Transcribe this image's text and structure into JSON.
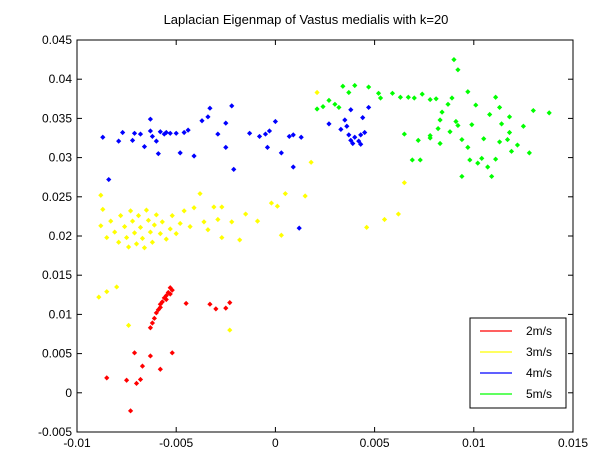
{
  "chart_data": {
    "type": "scatter",
    "title": "Laplacian Eigenmap of Vastus medialis  with k=20",
    "xlabel": "",
    "ylabel": "",
    "xlim": [
      -0.01,
      0.015
    ],
    "ylim": [
      -0.005,
      0.045
    ],
    "xticks": [
      -0.01,
      -0.005,
      0,
      0.005,
      0.01,
      0.015
    ],
    "xtick_labels": [
      "-0.01",
      "-0.005",
      "0",
      "0.005",
      "0.01",
      "0.015"
    ],
    "yticks": [
      -0.005,
      0,
      0.005,
      0.01,
      0.015,
      0.02,
      0.025,
      0.03,
      0.035,
      0.04,
      0.045
    ],
    "ytick_labels": [
      "-0.005",
      "0",
      "0.005",
      "0.01",
      "0.015",
      "0.02",
      "0.025",
      "0.03",
      "0.035",
      "0.04",
      "0.045"
    ],
    "grid": false,
    "legend_position": "bottom-right",
    "series": [
      {
        "name": "2m/s",
        "color": "#ff0000",
        "points": [
          [
            -0.0053,
            0.0134
          ],
          [
            -0.0052,
            0.0131
          ],
          [
            -0.0054,
            0.0128
          ],
          [
            -0.0053,
            0.0126
          ],
          [
            -0.0055,
            0.0124
          ],
          [
            -0.0056,
            0.0121
          ],
          [
            -0.0055,
            0.0119
          ],
          [
            -0.0057,
            0.0116
          ],
          [
            -0.0058,
            0.0113
          ],
          [
            -0.0058,
            0.0109
          ],
          [
            -0.0059,
            0.0106
          ],
          [
            -0.006,
            0.0102
          ],
          [
            -0.0061,
            0.0095
          ],
          [
            -0.0062,
            0.0089
          ],
          [
            -0.0063,
            0.0083
          ],
          [
            -0.0045,
            0.0114
          ],
          [
            -0.0033,
            0.0113
          ],
          [
            -0.003,
            0.0107
          ],
          [
            -0.0023,
            0.0115
          ],
          [
            -0.0025,
            0.0108
          ],
          [
            -0.0071,
            0.0051
          ],
          [
            -0.0063,
            0.0047
          ],
          [
            -0.0052,
            0.0051
          ],
          [
            -0.0058,
            0.003
          ],
          [
            -0.0067,
            0.0034
          ],
          [
            -0.0085,
            0.0019
          ],
          [
            -0.0075,
            0.0016
          ],
          [
            -0.007,
            0.0012
          ],
          [
            -0.0068,
            0.0017
          ],
          [
            -0.0073,
            -0.0023
          ]
        ]
      },
      {
        "name": "3m/s",
        "color": "#ffff00",
        "points": [
          [
            -0.0088,
            0.0213
          ],
          [
            -0.0085,
            0.0198
          ],
          [
            -0.0083,
            0.0219
          ],
          [
            -0.0081,
            0.0205
          ],
          [
            -0.0079,
            0.0192
          ],
          [
            -0.0078,
            0.0226
          ],
          [
            -0.0076,
            0.0212
          ],
          [
            -0.0075,
            0.0198
          ],
          [
            -0.0074,
            0.0186
          ],
          [
            -0.0073,
            0.0232
          ],
          [
            -0.0072,
            0.0219
          ],
          [
            -0.0071,
            0.0204
          ],
          [
            -0.007,
            0.019
          ],
          [
            -0.0069,
            0.0226
          ],
          [
            -0.0068,
            0.0211
          ],
          [
            -0.0067,
            0.0197
          ],
          [
            -0.0066,
            0.0185
          ],
          [
            -0.0065,
            0.0233
          ],
          [
            -0.0064,
            0.022
          ],
          [
            -0.0063,
            0.0205
          ],
          [
            -0.0062,
            0.0192
          ],
          [
            -0.0061,
            0.0214
          ],
          [
            -0.006,
            0.0227
          ],
          [
            -0.0058,
            0.0203
          ],
          [
            -0.0057,
            0.0218
          ],
          [
            -0.0055,
            0.0196
          ],
          [
            -0.0053,
            0.0209
          ],
          [
            -0.0052,
            0.0226
          ],
          [
            -0.005,
            0.0203
          ],
          [
            -0.0048,
            0.0216
          ],
          [
            -0.0046,
            0.0232
          ],
          [
            -0.0043,
            0.0212
          ],
          [
            -0.0041,
            0.0236
          ],
          [
            -0.0038,
            0.0254
          ],
          [
            -0.0036,
            0.0218
          ],
          [
            -0.0034,
            0.0208
          ],
          [
            -0.0031,
            0.0237
          ],
          [
            -0.0029,
            0.0221
          ],
          [
            -0.0027,
            0.0237
          ],
          [
            -0.0022,
            0.0218
          ],
          [
            -0.0027,
            0.0198
          ],
          [
            -0.0018,
            0.0195
          ],
          [
            -0.0009,
            0.0219
          ],
          [
            -0.0015,
            0.0228
          ],
          [
            -0.0002,
            0.0242
          ],
          [
            0.0001,
            0.0238
          ],
          [
            0.0005,
            0.0254
          ],
          [
            0.0003,
            0.0201
          ],
          [
            0.0015,
            0.0251
          ],
          [
            0.0018,
            0.0294
          ],
          [
            0.0021,
            0.0383
          ],
          [
            0.0046,
            0.0211
          ],
          [
            0.0055,
            0.0221
          ],
          [
            0.0062,
            0.0228
          ],
          [
            0.0065,
            0.0268
          ],
          [
            -0.0088,
            0.0252
          ],
          [
            -0.0087,
            0.0234
          ],
          [
            -0.0089,
            0.0122
          ],
          [
            -0.0085,
            0.0129
          ],
          [
            -0.008,
            0.0135
          ],
          [
            -0.0074,
            0.0086
          ],
          [
            -0.0023,
            0.008
          ]
        ]
      },
      {
        "name": "4m/s",
        "color": "#0000ff",
        "points": [
          [
            -0.0087,
            0.0326
          ],
          [
            -0.0084,
            0.0272
          ],
          [
            -0.0079,
            0.0321
          ],
          [
            -0.0077,
            0.0332
          ],
          [
            -0.0072,
            0.0322
          ],
          [
            -0.0071,
            0.0331
          ],
          [
            -0.0068,
            0.033
          ],
          [
            -0.0066,
            0.0314
          ],
          [
            -0.0062,
            0.0327
          ],
          [
            -0.006,
            0.0321
          ],
          [
            -0.0058,
            0.0333
          ],
          [
            -0.0056,
            0.033
          ],
          [
            -0.0055,
            0.0332
          ],
          [
            -0.0053,
            0.0331
          ],
          [
            -0.0059,
            0.0305
          ],
          [
            -0.005,
            0.0331
          ],
          [
            -0.0046,
            0.0332
          ],
          [
            -0.0044,
            0.0335
          ],
          [
            -0.0063,
            0.0349
          ],
          [
            -0.0063,
            0.0334
          ],
          [
            -0.0048,
            0.0306
          ],
          [
            -0.0041,
            0.0302
          ],
          [
            -0.0037,
            0.0347
          ],
          [
            -0.0034,
            0.0352
          ],
          [
            -0.0033,
            0.0363
          ],
          [
            -0.0029,
            0.033
          ],
          [
            -0.0025,
            0.0344
          ],
          [
            -0.0022,
            0.0366
          ],
          [
            -0.0025,
            0.0313
          ],
          [
            -0.0021,
            0.0285
          ],
          [
            -0.0013,
            0.0331
          ],
          [
            -0.0008,
            0.0327
          ],
          [
            -0.0005,
            0.033
          ],
          [
            -0.0003,
            0.0334
          ],
          [
            0.0,
            0.0346
          ],
          [
            -0.0004,
            0.0313
          ],
          [
            0.0003,
            0.0306
          ],
          [
            0.0007,
            0.0327
          ],
          [
            0.0009,
            0.0329
          ],
          [
            0.0013,
            0.0326
          ],
          [
            0.0009,
            0.0288
          ],
          [
            0.0012,
            0.021
          ],
          [
            0.0027,
            0.0343
          ],
          [
            0.0033,
            0.0336
          ],
          [
            0.0036,
            0.034
          ],
          [
            0.0037,
            0.0329
          ],
          [
            0.0038,
            0.0322
          ],
          [
            0.004,
            0.0326
          ],
          [
            0.0042,
            0.0321
          ],
          [
            0.0043,
            0.0329
          ],
          [
            0.0045,
            0.0332
          ],
          [
            0.0044,
            0.0351
          ],
          [
            0.0047,
            0.0364
          ],
          [
            0.0038,
            0.0361
          ],
          [
            0.0035,
            0.0348
          ],
          [
            0.0039,
            0.0318
          ],
          [
            0.0043,
            0.0317
          ]
        ]
      },
      {
        "name": "5m/s",
        "color": "#00ff00",
        "points": [
          [
            0.0021,
            0.0362
          ],
          [
            0.0024,
            0.0365
          ],
          [
            0.0027,
            0.0373
          ],
          [
            0.003,
            0.0368
          ],
          [
            0.0032,
            0.0364
          ],
          [
            0.0034,
            0.0391
          ],
          [
            0.0037,
            0.0383
          ],
          [
            0.004,
            0.0392
          ],
          [
            0.0047,
            0.039
          ],
          [
            0.0052,
            0.0382
          ],
          [
            0.0053,
            0.0376
          ],
          [
            0.0059,
            0.0382
          ],
          [
            0.0063,
            0.0377
          ],
          [
            0.0067,
            0.0377
          ],
          [
            0.007,
            0.0376
          ],
          [
            0.0074,
            0.0381
          ],
          [
            0.0078,
            0.0374
          ],
          [
            0.0081,
            0.0375
          ],
          [
            0.0084,
            0.0358
          ],
          [
            0.0087,
            0.0368
          ],
          [
            0.0089,
            0.0376
          ],
          [
            0.009,
            0.0425
          ],
          [
            0.0092,
            0.0412
          ],
          [
            0.0097,
            0.0384
          ],
          [
            0.0091,
            0.0346
          ],
          [
            0.0078,
            0.0325
          ],
          [
            0.0083,
            0.0318
          ],
          [
            0.0088,
            0.0333
          ],
          [
            0.0092,
            0.0341
          ],
          [
            0.0094,
            0.0323
          ],
          [
            0.0097,
            0.0313
          ],
          [
            0.0098,
            0.0297
          ],
          [
            0.0102,
            0.0293
          ],
          [
            0.0104,
            0.0299
          ],
          [
            0.0107,
            0.0288
          ],
          [
            0.0109,
            0.0276
          ],
          [
            0.0111,
            0.0298
          ],
          [
            0.0113,
            0.032
          ],
          [
            0.0114,
            0.0343
          ],
          [
            0.0117,
            0.0323
          ],
          [
            0.0119,
            0.0308
          ],
          [
            0.0122,
            0.0316
          ],
          [
            0.0118,
            0.0352
          ],
          [
            0.0108,
            0.0355
          ],
          [
            0.0111,
            0.0377
          ],
          [
            0.0113,
            0.0364
          ],
          [
            0.0101,
            0.0367
          ],
          [
            0.0099,
            0.0342
          ],
          [
            0.0105,
            0.0324
          ],
          [
            0.0118,
            0.0332
          ],
          [
            0.0125,
            0.034
          ],
          [
            0.0128,
            0.0306
          ],
          [
            0.013,
            0.036
          ],
          [
            0.0138,
            0.0357
          ],
          [
            0.0083,
            0.0348
          ],
          [
            0.0072,
            0.0322
          ],
          [
            0.0065,
            0.033
          ],
          [
            0.0069,
            0.0297
          ],
          [
            0.0073,
            0.0297
          ],
          [
            0.0094,
            0.0276
          ],
          [
            0.0078,
            0.0328
          ],
          [
            0.0082,
            0.0337
          ]
        ]
      }
    ]
  }
}
